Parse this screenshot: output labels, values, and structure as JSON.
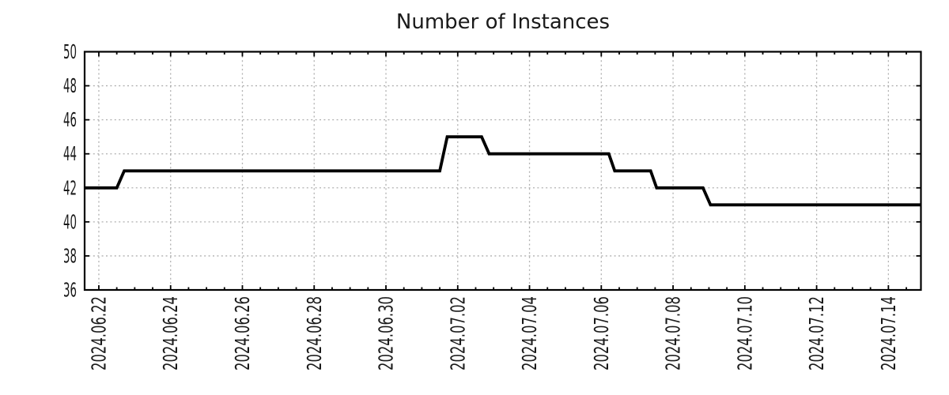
{
  "window": {
    "background": "#ffffff"
  },
  "chart_data": {
    "type": "line",
    "title": "Number of Instances",
    "x_type": "time",
    "x_range": {
      "start": "2024-06-21 14:30",
      "end": "2024-07-14 21:45"
    },
    "ylim": [
      36,
      50
    ],
    "y_ticks": [
      36,
      38,
      40,
      42,
      44,
      46,
      48,
      50
    ],
    "x_ticks": [
      {
        "label": "2024.06.22",
        "time": "2024-06-22 00:00"
      },
      {
        "label": "2024.06.24",
        "time": "2024-06-24 00:00"
      },
      {
        "label": "2024.06.26",
        "time": "2024-06-26 00:00"
      },
      {
        "label": "2024.06.28",
        "time": "2024-06-28 00:00"
      },
      {
        "label": "2024.06.30",
        "time": "2024-06-30 00:00"
      },
      {
        "label": "2024.07.02",
        "time": "2024-07-02 00:00"
      },
      {
        "label": "2024.07.04",
        "time": "2024-07-04 00:00"
      },
      {
        "label": "2024.07.06",
        "time": "2024-07-06 00:00"
      },
      {
        "label": "2024.07.08",
        "time": "2024-07-08 00:00"
      },
      {
        "label": "2024.07.10",
        "time": "2024-07-10 00:00"
      },
      {
        "label": "2024.07.12",
        "time": "2024-07-12 00:00"
      },
      {
        "label": "2024.07.14",
        "time": "2024-07-14 00:00"
      }
    ],
    "x_minor_tick_hours": 12,
    "grid": {
      "shown": true,
      "color": "#b0b0b0",
      "style": "dotted"
    },
    "legend": {
      "shown": false
    },
    "axis_color": "#000000",
    "text_color": "#1a1a1a",
    "series": [
      {
        "name": "Number of Instances",
        "color": "#000000",
        "points": [
          {
            "time": "2024-06-21 14:30",
            "value": 42
          },
          {
            "time": "2024-06-22 12:00",
            "value": 42
          },
          {
            "time": "2024-06-22 17:00",
            "value": 43
          },
          {
            "time": "2024-07-01 12:00",
            "value": 43
          },
          {
            "time": "2024-07-01 17:00",
            "value": 45
          },
          {
            "time": "2024-07-02 16:00",
            "value": 45
          },
          {
            "time": "2024-07-02 21:00",
            "value": 44
          },
          {
            "time": "2024-07-06 05:00",
            "value": 44
          },
          {
            "time": "2024-07-06 09:00",
            "value": 43
          },
          {
            "time": "2024-07-07 09:00",
            "value": 43
          },
          {
            "time": "2024-07-07 13:00",
            "value": 42
          },
          {
            "time": "2024-07-08 20:00",
            "value": 42
          },
          {
            "time": "2024-07-09 01:00",
            "value": 41
          },
          {
            "time": "2024-07-14 21:45",
            "value": 41
          }
        ]
      }
    ]
  }
}
